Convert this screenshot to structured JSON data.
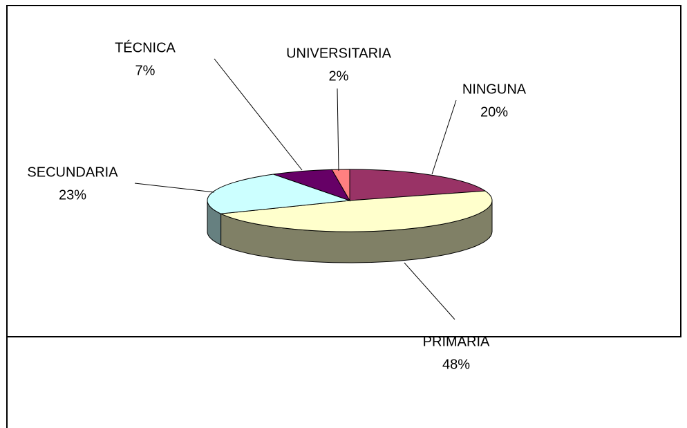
{
  "chart_data": {
    "type": "pie",
    "categories": [
      "NINGUNA",
      "PRIMARIA",
      "SECUNDARIA",
      "TÉCNICA",
      "UNIVERSITARIA"
    ],
    "values": [
      20,
      48,
      23,
      7,
      2
    ],
    "value_labels": [
      "20%",
      "48%",
      "23%",
      "7%",
      "2%"
    ],
    "colors": [
      "#993366",
      "#FFFFCC",
      "#CCFFFF",
      "#660066",
      "#FF8080"
    ]
  }
}
